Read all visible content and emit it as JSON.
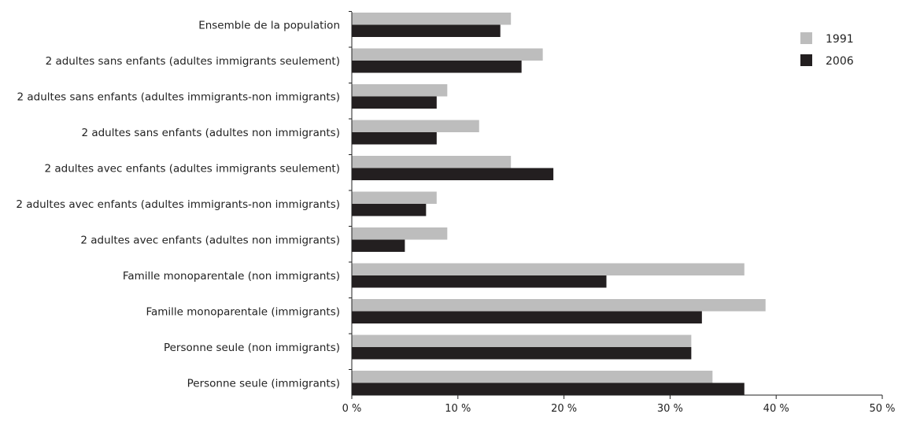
{
  "chart_data": {
    "type": "bar",
    "orientation": "horizontal",
    "categories": [
      "Ensemble de la population",
      "2 adultes sans enfants (adultes immigrants seulement)",
      "2 adultes sans enfants (adultes immigrants-non immigrants)",
      "2 adultes sans enfants (adultes non immigrants)",
      "2 adultes avec enfants (adultes immigrants seulement)",
      "2 adultes avec enfants (adultes immigrants-non immigrants)",
      "2 adultes avec enfants (adultes non immigrants)",
      "Famille monoparentale (non immigrants)",
      "Famille monoparentale (immigrants)",
      "Personne seule (non immigrants)",
      "Personne seule (immigrants)"
    ],
    "series": [
      {
        "name": "1991",
        "color": "#bdbdbd",
        "values": [
          15,
          18,
          9,
          12,
          15,
          8,
          9,
          37,
          39,
          32,
          34
        ]
      },
      {
        "name": "2006",
        "color": "#231f20",
        "values": [
          14,
          16,
          8,
          8,
          19,
          7,
          5,
          24,
          33,
          32,
          37
        ]
      }
    ],
    "xlim": [
      0,
      50
    ],
    "xticks": [
      0,
      10,
      20,
      30,
      40,
      50
    ],
    "xtick_labels": [
      "0 %",
      "10 %",
      "20 %",
      "30 %",
      "40 %",
      "50 %"
    ],
    "title": "",
    "xlabel": "",
    "ylabel": "",
    "grid": false,
    "legend_position": "top-right"
  }
}
